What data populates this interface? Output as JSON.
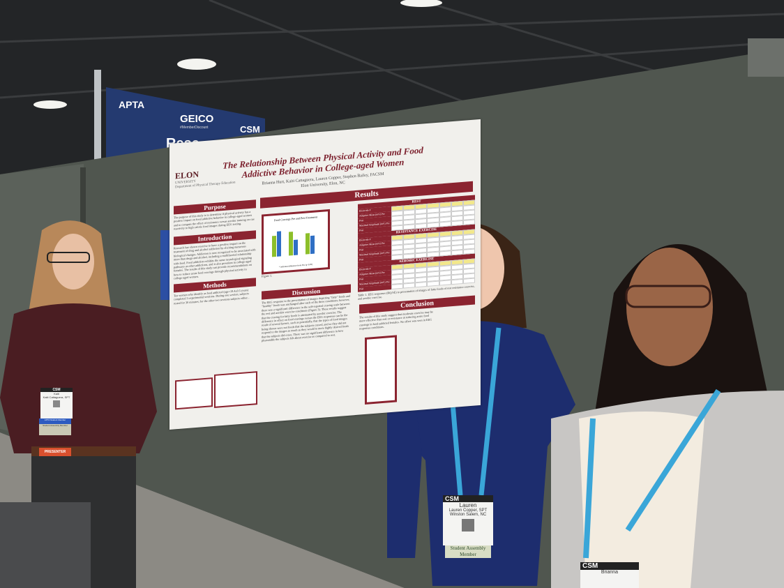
{
  "banner": {
    "org": "APTA",
    "sponsor": "GEICO",
    "sponsor_tag": "#MemberDiscount",
    "event": "CSM",
    "partial_word": "Rese"
  },
  "poster": {
    "title_line1": "The Relationship Between Physical Activity and Food",
    "title_line2": "Addictive Behavior in College-aged Women",
    "authors": "Brianna Hurt, Kaiti Cattaguera, Lauren Copper, Stephen Bailey, FACSM",
    "affiliation": "Elon University, Elon, NC",
    "logo": {
      "name": "ELON",
      "sub": "UNIVERSITY",
      "dept": "Department of Physical Therapy Education"
    },
    "sections": {
      "purpose": {
        "heading": "Purpose",
        "text": "The purpose of this study is to determine if physical activity has a positive impact on food addictive behavior in college-aged women and to compare the effect of resistance versus aerobic training on cue reactivity to high calorie food images during EEG testing."
      },
      "introduction": {
        "heading": "Introduction",
        "text": "Research has shown exercise to have a positive impact on the treatment of drug and alcohol addiction by eliciting numerous biological changes. Addiction is now recognized to be associated with more than drugs and alcohol, including a multifaceted relationship with food. Food addiction exhibits the same neurological signaling pathways as other addictions, and is also prevalent in college-aged females. The results of this study can provide recommendations on how to reduce acute food cravings through physical activity in college-aged women."
      },
      "methods": {
        "heading": "Methods",
        "text": "Ten women who identify as food addicted (age=19.4±0.5 years) completed 3 experimental sessions. During one session, subjects rested for 30 minutes; for the other two sessions subjects either..."
      },
      "results": {
        "heading": "Results"
      },
      "discussion": {
        "heading": "Discussion",
        "text": "The EEG response to the presentation of images depicting \"fatty\" foods and \"healthy\" foods was unchanged after each of the three conditions; however, there was a significant difference in the self-reported craving scale between the rest and aerobic exercise conditions (Figure 3). These results suggest that the craving for fatty foods is attenuated by aerobic exercise. The difference in effect on food cravings versus the EEG responses can be the result of several factors, such as potentially, that the types of food images being shown were not foods that the subjects craved, and so they did not respond to the images as much as they would to more highly desired foods that the subjects did crave. There was no significant difference in how pleasurable the subjects felt about exercise as compared to rest."
      },
      "conclusion": {
        "heading": "Conclusion",
        "text": "The results of this study suggest that moderate exercise may be more effective than rest or resistance at reducing acute food cravings in food-addicted females. No effect was seen in EEG responses conditions."
      }
    },
    "table": {
      "sections": [
        "REST",
        "RESISTANCE EXERCISE",
        "AEROBIC EXERCISE"
      ],
      "rows": [
        "Electrode #",
        "Adaptive Mean (mV)",
        "",
        "Maximal Amplitude (mV)",
        ""
      ],
      "prepost": [
        "",
        "Pre",
        "Post",
        "Pre",
        "Post"
      ],
      "caption": "Table 1. EEG responses (RQ/SE) to presentation of images of fatty foods of rest resistance exercise, and aerobic exercise."
    },
    "figure": {
      "title": "Food Cravings Pre and Post Treatment",
      "caption": "Figure 1.",
      "note": "* indicates difference from Pre (p<0.05)",
      "bar_colors": [
        "#8dbf2a",
        "#2f6fc4"
      ]
    }
  },
  "badges": {
    "left": {
      "first": "Kaiti",
      "full": "Kaiti Cattaguera, SPT",
      "ribbon1": "APTA Student Member",
      "ribbon2": "Student Assembly Member",
      "ribbon3": "PRESENTER",
      "event": "CSM"
    },
    "center": {
      "first": "Lauren",
      "full": "Lauren Copper, SPT",
      "city": "Winston Salem, NC",
      "ribbon": "Student Assembly Member",
      "event": "CSM"
    },
    "right": {
      "first": "Brianna",
      "event": "CSM"
    }
  },
  "colors": {
    "maroon": "#8b2430",
    "lanyard": "#3aa6d8",
    "wall": "#50564f"
  }
}
